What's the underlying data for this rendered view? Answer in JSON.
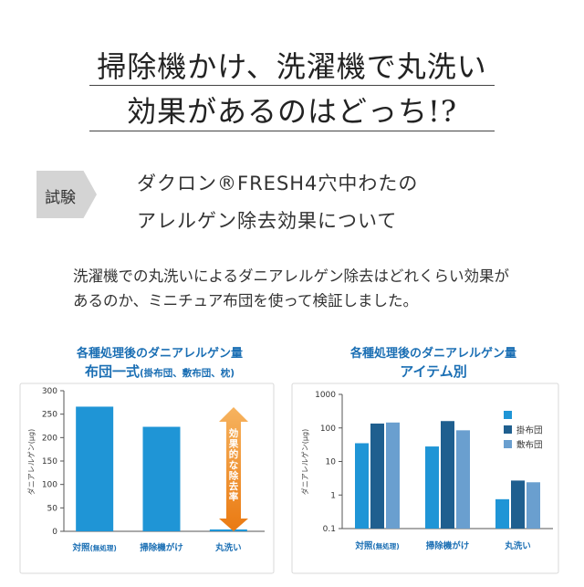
{
  "header": {
    "title_line1": "掃除機かけ、洗濯機で丸洗い",
    "title_line2": "効果があるのはどっち!?"
  },
  "test": {
    "tag": "試験",
    "subtitle_line1": "ダクロン®FRESH4穴中わたの",
    "subtitle_line2": "アレルゲン除去効果について"
  },
  "description": {
    "line1": "洗濯機での丸洗いによるダニアレルゲン除去はどれくらい効果が",
    "line2": "あるのか、ミニチュア布団を使って検証しました。"
  },
  "chart_data": [
    {
      "type": "bar",
      "title": "各種処理後のダニアレルゲン量",
      "subtitle": "布団一式",
      "subtitle_note": "(掛布団、敷布団、枕)",
      "ylabel": "ダニアレルゲン(μg)",
      "ylim": [
        0,
        300
      ],
      "yticks": [
        0,
        50,
        100,
        150,
        200,
        250,
        300
      ],
      "grid": false,
      "categories": [
        "対照(無処理)",
        "掃除機がけ",
        "丸洗い"
      ],
      "values": [
        266,
        223,
        4
      ],
      "color": "#1f95d6",
      "annotation": "効果的な除去率",
      "annotation_color": "#f08a1c"
    },
    {
      "type": "bar",
      "title": "各種処理後のダニアレルゲン量",
      "subtitle": "アイテム別",
      "ylabel": "ダニアレルゲン(μg)",
      "yscale": "log",
      "ylim": [
        0.1,
        1000
      ],
      "yticks": [
        "0.1",
        "1",
        "10",
        "100",
        "1000"
      ],
      "grid": false,
      "legend": "top-right",
      "categories": [
        "対照(無処理)",
        "掃除機がけ",
        "丸洗い"
      ],
      "series": [
        {
          "name": "",
          "color": "#1f95d6",
          "values": [
            35,
            28,
            0.75
          ]
        },
        {
          "name": "掛布団",
          "color": "#1f5f8f",
          "values": [
            135,
            160,
            2.7
          ]
        },
        {
          "name": "敷布団",
          "color": "#6a9fcf",
          "values": [
            145,
            85,
            2.4
          ]
        }
      ]
    }
  ]
}
